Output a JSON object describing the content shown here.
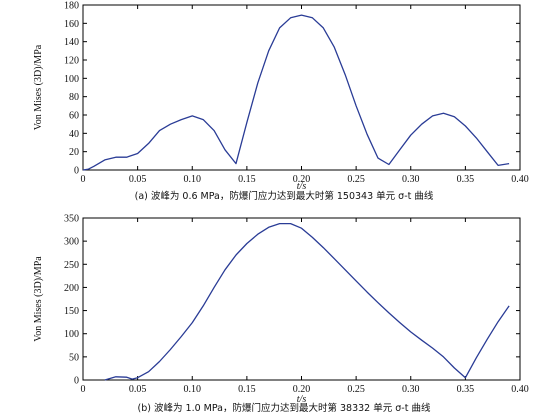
{
  "chart_data": [
    {
      "type": "line",
      "caption": "(a) 波峰为 0.6 MPa，防爆门应力达到最大时第 150343 单元 σ-t 曲线",
      "xlabel": "t/s",
      "ylabel": "Von Mises (3D)/MPa",
      "xlim": [
        0,
        0.4
      ],
      "ylim": [
        0,
        180
      ],
      "xticks": [
        "0",
        "0.05",
        "0.10",
        "0.15",
        "0.20",
        "0.25",
        "0.30",
        "0.35",
        "0.40"
      ],
      "yticks": [
        "0",
        "20",
        "40",
        "60",
        "80",
        "100",
        "120",
        "140",
        "160",
        "180"
      ],
      "grid": false,
      "series": [
        {
          "x": [
            0.0,
            0.005,
            0.01,
            0.02,
            0.03,
            0.04,
            0.05,
            0.06,
            0.07,
            0.08,
            0.09,
            0.1,
            0.11,
            0.12,
            0.13,
            0.14,
            0.15,
            0.16,
            0.17,
            0.18,
            0.19,
            0.2,
            0.21,
            0.22,
            0.23,
            0.24,
            0.25,
            0.26,
            0.27,
            0.28,
            0.29,
            0.3,
            0.31,
            0.32,
            0.33,
            0.34,
            0.35,
            0.36,
            0.37,
            0.38,
            0.39
          ],
          "values": [
            0,
            1,
            4,
            11,
            14,
            14,
            18,
            29,
            43,
            50,
            55,
            59,
            55,
            43,
            22,
            7,
            52,
            95,
            130,
            155,
            166,
            169,
            166,
            155,
            134,
            104,
            70,
            39,
            13,
            6,
            22,
            38,
            50,
            59,
            62,
            58,
            48,
            35,
            20,
            5,
            7
          ]
        }
      ]
    },
    {
      "type": "line",
      "caption": "(b) 波峰为 1.0 MPa，防爆门应力达到最大时第 38332 单元 σ-t 曲线",
      "xlabel": "t/s",
      "ylabel": "Von Mises (3D)/MPa",
      "xlim": [
        0,
        0.4
      ],
      "ylim": [
        0,
        350
      ],
      "xticks": [
        "0",
        "0.05",
        "0.10",
        "0.15",
        "0.20",
        "0.25",
        "0.30",
        "0.35",
        "0.40"
      ],
      "yticks": [
        "0",
        "50",
        "100",
        "150",
        "200",
        "250",
        "300",
        "350"
      ],
      "grid": false,
      "series": [
        {
          "x": [
            0.02,
            0.03,
            0.04,
            0.045,
            0.05,
            0.06,
            0.07,
            0.08,
            0.09,
            0.1,
            0.11,
            0.12,
            0.13,
            0.14,
            0.15,
            0.16,
            0.17,
            0.18,
            0.19,
            0.2,
            0.21,
            0.22,
            0.23,
            0.24,
            0.25,
            0.26,
            0.27,
            0.28,
            0.29,
            0.3,
            0.31,
            0.32,
            0.33,
            0.34,
            0.35,
            0.36,
            0.37,
            0.38,
            0.39
          ],
          "values": [
            0,
            7,
            6,
            2,
            5,
            18,
            40,
            66,
            94,
            124,
            160,
            200,
            238,
            270,
            295,
            315,
            330,
            338,
            338,
            328,
            308,
            286,
            262,
            238,
            214,
            190,
            167,
            145,
            124,
            104,
            86,
            69,
            50,
            26,
            5,
            48,
            88,
            126,
            160
          ]
        }
      ]
    }
  ]
}
